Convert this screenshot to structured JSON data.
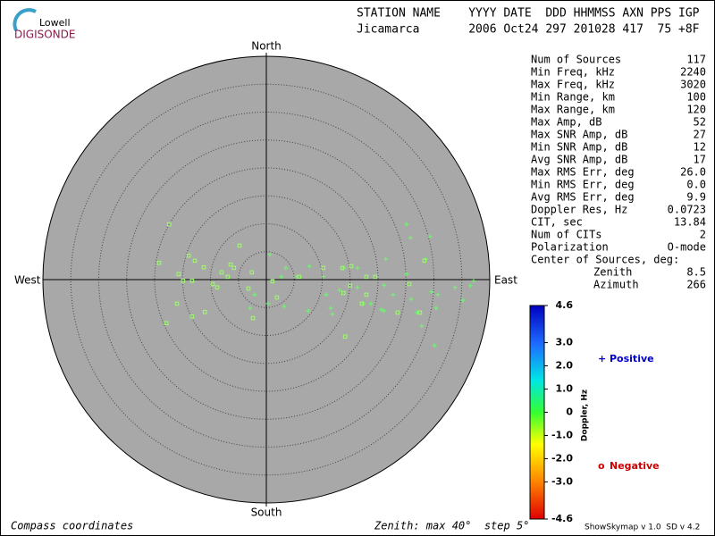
{
  "logo": {
    "top": "Lowell",
    "bottom": "DIGISONDE"
  },
  "header": {
    "line1": "STATION NAME    YYYY DATE  DDD HHMMSS AXN PPS IGP",
    "line2": "Jicamarca       2006 Oct24 297 201028 417  75 +8F"
  },
  "chart_data": {
    "type": "skymap",
    "directions": {
      "north": "North",
      "south": "South",
      "west": "West",
      "east": "East"
    },
    "xlim": [
      -40,
      40
    ],
    "ylim": [
      -40,
      40
    ],
    "rings": [
      5,
      10,
      15,
      20,
      25,
      30,
      35
    ],
    "series": [
      {
        "name": "Positive",
        "marker": "+",
        "color": "#66ff66",
        "legend_color": "#0000cc",
        "x": [
          25.1,
          25.8,
          29.3,
          21.4,
          28.5,
          25.1,
          37.1,
          36.5,
          33.8,
          29.6,
          30.7,
          35.2,
          30.4,
          27.0,
          27.8,
          30.1,
          21.1,
          18.7,
          20.6,
          17.4,
          16.3,
          13.1,
          11.5,
          11.8,
          7.5,
          3.2,
          0.3,
          5.4,
          2.7,
          0.6,
          3.5,
          7.7,
          10.2,
          10.7,
          13.9,
          16.3,
          22.7,
          25.9,
          21.1,
          -2.1,
          -2.9
        ],
        "y": [
          9.9,
          7.5,
          7.7,
          3.7,
          3.7,
          1.0,
          -0.2,
          -1.1,
          -1.4,
          -2.2,
          -2.7,
          -3.7,
          -5.1,
          -5.9,
          -8.3,
          -11.8,
          -1.0,
          -4.3,
          -5.4,
          -4.3,
          -1.4,
          -1.9,
          -5.1,
          -6.2,
          -5.6,
          -4.8,
          -4.3,
          0.5,
          0.5,
          4.5,
          2.1,
          2.4,
          0.5,
          -2.7,
          2.1,
          2.1,
          -2.7,
          -3.5,
          -5.6,
          -2.7,
          -5.1
        ]
      },
      {
        "name": "Negative",
        "marker": "o",
        "color": "#99ff66",
        "legend_color": "#cc0000",
        "x": [
          -17.4,
          -19.2,
          -13.9,
          -12.8,
          -15.7,
          -14.9,
          -13.3,
          -11.2,
          -9.6,
          -8.8,
          -8.0,
          -6.4,
          -5.8,
          -4.8,
          -6.9,
          -2.6,
          1.1,
          -13.3,
          -16.0,
          -17.9,
          -11.0,
          -3.2,
          -2.4,
          1.9,
          5.9,
          10.2,
          13.6,
          15.2,
          17.9,
          15.0,
          13.8,
          17.9,
          17.1,
          14.1,
          19.5,
          25.6,
          27.5,
          23.5,
          28.3
        ],
        "y": [
          9.9,
          3.0,
          4.3,
          3.4,
          1.0,
          -0.2,
          -0.2,
          2.2,
          -0.8,
          -1.4,
          1.3,
          2.7,
          2.1,
          6.1,
          0.5,
          1.3,
          -0.3,
          -6.6,
          -4.3,
          -7.8,
          -5.8,
          -1.6,
          -6.9,
          -3.2,
          0.5,
          2.1,
          2.1,
          2.4,
          0.5,
          -1.1,
          -2.4,
          -2.7,
          -4.3,
          -10.2,
          0.5,
          -0.8,
          -5.9,
          -5.9,
          3.4
        ]
      }
    ],
    "colorbar": {
      "label": "Doppler, Hz",
      "lim": [
        -4.6,
        4.6
      ],
      "ticks": [
        4.6,
        {
          "value": 3,
          "label": "3.0"
        },
        {
          "value": 2,
          "label": "2.0"
        },
        {
          "value": 1,
          "label": "1.0"
        },
        0,
        {
          "value": -1,
          "label": "-1.0"
        },
        {
          "value": -2,
          "label": "-2.0"
        },
        {
          "value": -3,
          "label": "-3.0"
        },
        -4.6
      ]
    }
  },
  "stats": {
    "rows": [
      [
        "Num of Sources",
        "117"
      ],
      [
        "Min Freq, kHz",
        "2240"
      ],
      [
        "Max Freq, kHz",
        "3020"
      ],
      [
        "Min Range, km",
        "100"
      ],
      [
        "Max Range, km",
        "120"
      ],
      [
        "Max Amp, dB",
        "52"
      ],
      [
        "Max SNR Amp, dB",
        "27"
      ],
      [
        "Min SNR Amp, dB",
        "12"
      ],
      [
        "Avg SNR Amp, dB",
        "17"
      ],
      [
        "Max RMS Err, deg",
        "26.0"
      ],
      [
        "Min RMS Err, deg",
        "0.0"
      ],
      [
        "Avg RMS Err, deg",
        "9.9"
      ],
      [
        "Doppler Res, Hz",
        "0.0723"
      ],
      [
        "CIT, sec",
        "13.84"
      ],
      [
        "Num of CITs",
        "2"
      ],
      [
        "Polarization",
        "O-mode"
      ]
    ],
    "center_title": "Center of Sources, deg:",
    "center": [
      [
        "Zenith",
        "8.5"
      ],
      [
        "Azimuth",
        "266"
      ]
    ]
  },
  "footer": {
    "left": "Compass coordinates",
    "middle": "Zenith: max 40°  step 5°",
    "right": "ShowSkymap v 1.0  SD v 4.2"
  }
}
